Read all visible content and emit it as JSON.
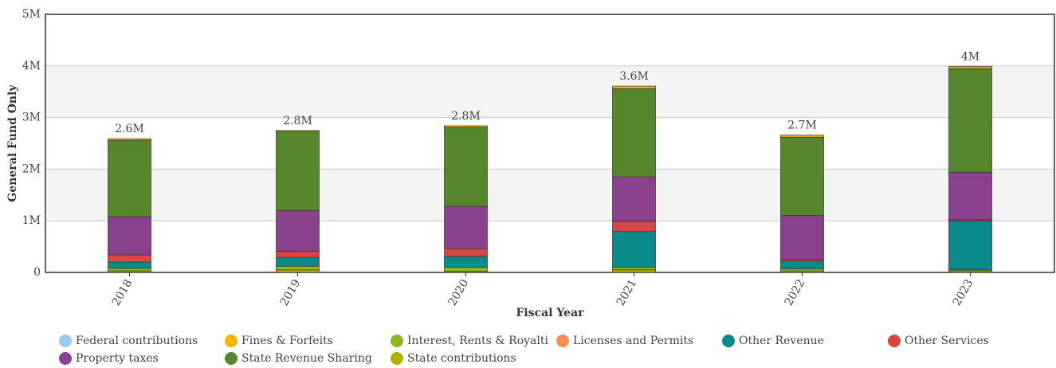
{
  "chart_data": {
    "type": "stacked-bar",
    "x_label": "Fiscal Year",
    "y_label": "General Fund Only",
    "categories": [
      "2018",
      "2019",
      "2020",
      "2021",
      "2022",
      "2023"
    ],
    "series": [
      {
        "name": "Federal contributions",
        "color": "#9ecae9",
        "values": [
          0,
          0,
          0,
          0,
          0,
          0
        ]
      },
      {
        "name": "Fines & Forfeits",
        "color": "#f2b600",
        "values": [
          30000,
          20000,
          30000,
          50000,
          40000,
          40000
        ]
      },
      {
        "name": "Interest, Rents & Royalti",
        "color": "#8db91f",
        "values": [
          50000,
          70000,
          80000,
          50000,
          40000,
          20000
        ]
      },
      {
        "name": "Licenses and Permits",
        "color": "#f98e52",
        "values": [
          0,
          0,
          0,
          0,
          0,
          0
        ]
      },
      {
        "name": "Other Revenue",
        "color": "#0a8a8a",
        "values": [
          120000,
          170000,
          210000,
          690000,
          150000,
          950000
        ]
      },
      {
        "name": "Other Services",
        "color": "#d94646",
        "values": [
          140000,
          120000,
          150000,
          200000,
          30000,
          20000
        ]
      },
      {
        "name": "Property taxes",
        "color": "#8b428e",
        "values": [
          740000,
          790000,
          820000,
          860000,
          850000,
          920000
        ]
      },
      {
        "name": "State Revenue Sharing",
        "color": "#56872a",
        "values": [
          1480000,
          1530000,
          1530000,
          1710000,
          1520000,
          2010000
        ]
      },
      {
        "name": "State contributions",
        "color": "#b5ad00",
        "values": [
          30000,
          50000,
          20000,
          50000,
          30000,
          30000
        ]
      }
    ],
    "totals": {
      "values": [
        2590000,
        2750000,
        2840000,
        3610000,
        2660000,
        3990000
      ],
      "value_labels": [
        "2.6M",
        "2.8M",
        "2.8M",
        "3.6M",
        "2.7M",
        "4M"
      ]
    },
    "ylim": [
      0,
      5000000
    ],
    "yticks": [
      0,
      {
        "value": 1000000,
        "label": "1M"
      },
      {
        "value": 2000000,
        "label": "2M"
      },
      {
        "value": 3000000,
        "label": "3M"
      },
      {
        "value": 4000000,
        "label": "4M"
      },
      {
        "value": 5000000,
        "label": "5M"
      }
    ],
    "grid": true
  }
}
